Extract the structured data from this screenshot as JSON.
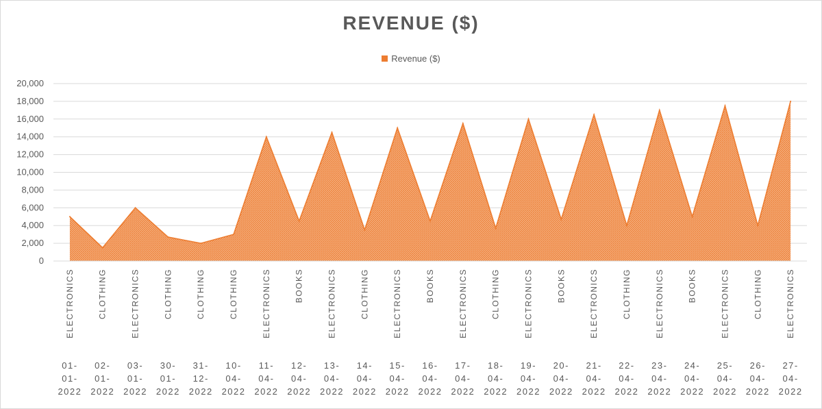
{
  "chart_data": {
    "type": "area",
    "title": "REVENUE ($)",
    "legend_position": "top",
    "grid": true,
    "ylim": [
      0,
      20000
    ],
    "yticks": [
      0,
      2000,
      4000,
      6000,
      8000,
      10000,
      12000,
      14000,
      16000,
      18000,
      20000
    ],
    "ytick_labels": [
      "0",
      "2,000",
      "4,000",
      "6,000",
      "8,000",
      "10,000",
      "12,000",
      "14,000",
      "16,000",
      "18,000",
      "20,000"
    ],
    "categories": [
      {
        "category": "ELECTRONICS",
        "date": [
          "01-",
          "01-",
          "2022"
        ]
      },
      {
        "category": "CLOTHING",
        "date": [
          "02-",
          "01-",
          "2022"
        ]
      },
      {
        "category": "ELECTRONICS",
        "date": [
          "03-",
          "01-",
          "2022"
        ]
      },
      {
        "category": "CLOTHING",
        "date": [
          "30-",
          "01-",
          "2022"
        ]
      },
      {
        "category": "CLOTHING",
        "date": [
          "31-",
          "12-",
          "2022"
        ]
      },
      {
        "category": "CLOTHING",
        "date": [
          "10-",
          "04-",
          "2022"
        ]
      },
      {
        "category": "ELECTRONICS",
        "date": [
          "11-",
          "04-",
          "2022"
        ]
      },
      {
        "category": "BOOKS",
        "date": [
          "12-",
          "04-",
          "2022"
        ]
      },
      {
        "category": "ELECTRONICS",
        "date": [
          "13-",
          "04-",
          "2022"
        ]
      },
      {
        "category": "CLOTHING",
        "date": [
          "14-",
          "04-",
          "2022"
        ]
      },
      {
        "category": "ELECTRONICS",
        "date": [
          "15-",
          "04-",
          "2022"
        ]
      },
      {
        "category": "BOOKS",
        "date": [
          "16-",
          "04-",
          "2022"
        ]
      },
      {
        "category": "ELECTRONICS",
        "date": [
          "17-",
          "04-",
          "2022"
        ]
      },
      {
        "category": "CLOTHING",
        "date": [
          "18-",
          "04-",
          "2022"
        ]
      },
      {
        "category": "ELECTRONICS",
        "date": [
          "19-",
          "04-",
          "2022"
        ]
      },
      {
        "category": "BOOKS",
        "date": [
          "20-",
          "04-",
          "2022"
        ]
      },
      {
        "category": "ELECTRONICS",
        "date": [
          "21-",
          "04-",
          "2022"
        ]
      },
      {
        "category": "CLOTHING",
        "date": [
          "22-",
          "04-",
          "2022"
        ]
      },
      {
        "category": "ELECTRONICS",
        "date": [
          "23-",
          "04-",
          "2022"
        ]
      },
      {
        "category": "BOOKS",
        "date": [
          "24-",
          "04-",
          "2022"
        ]
      },
      {
        "category": "ELECTRONICS",
        "date": [
          "25-",
          "04-",
          "2022"
        ]
      },
      {
        "category": "CLOTHING",
        "date": [
          "26-",
          "04-",
          "2022"
        ]
      },
      {
        "category": "ELECTRONICS",
        "date": [
          "27-",
          "04-",
          "2022"
        ]
      }
    ],
    "series": [
      {
        "name": "Revenue ($)",
        "color": "#ed7d31",
        "values": [
          5000,
          1500,
          6000,
          2700,
          2000,
          3000,
          14000,
          4500,
          14500,
          3500,
          15000,
          4500,
          15500,
          3700,
          16000,
          4700,
          16500,
          4000,
          17000,
          5000,
          17500,
          4000,
          18000
        ]
      }
    ]
  }
}
